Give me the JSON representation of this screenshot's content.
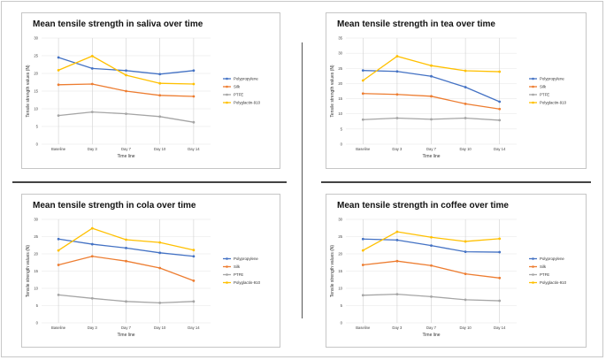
{
  "chart_data": [
    {
      "type": "line",
      "title": "Mean tensile strength in saliva over time",
      "xlabel": "Time line",
      "ylabel": "Tensile strength values (N)",
      "categories": [
        "Baseline",
        "Day 3",
        "Day 7",
        "Day 10",
        "Day 14"
      ],
      "ylim": [
        0,
        30
      ],
      "yticks": [
        0,
        5,
        10,
        15,
        20,
        25,
        30
      ],
      "legend_position": "right",
      "series": [
        {
          "name": "Polypropylene",
          "color": "#4472C4",
          "values": [
            24.5,
            21.4,
            20.8,
            19.8,
            20.8
          ]
        },
        {
          "name": "Silk",
          "color": "#ED7D31",
          "values": [
            16.8,
            17.0,
            15.0,
            13.8,
            13.5
          ]
        },
        {
          "name": "PTFE",
          "color": "#A5A5A5",
          "values": [
            8.1,
            9.1,
            8.6,
            7.8,
            6.2
          ]
        },
        {
          "name": "Polyglactin-910",
          "color": "#FFC000",
          "values": [
            20.9,
            24.9,
            19.5,
            17.2,
            17.0
          ]
        }
      ]
    },
    {
      "type": "line",
      "title": "Mean tensile strength in tea over time",
      "xlabel": "Time line",
      "ylabel": "Tensile strength values (N)",
      "categories": [
        "Baseline",
        "Day 3",
        "Day 7",
        "Day 10",
        "Day 14"
      ],
      "ylim": [
        0,
        35
      ],
      "yticks": [
        0,
        5,
        10,
        15,
        20,
        25,
        30,
        35
      ],
      "legend_position": "right",
      "series": [
        {
          "name": "Polypropylene",
          "color": "#4472C4",
          "values": [
            24.3,
            24.0,
            22.4,
            18.8,
            14.0
          ]
        },
        {
          "name": "Silk",
          "color": "#ED7D31",
          "values": [
            16.7,
            16.4,
            15.8,
            13.3,
            11.6
          ]
        },
        {
          "name": "PTFE",
          "color": "#A5A5A5",
          "values": [
            8.1,
            8.6,
            8.2,
            8.6,
            7.9
          ]
        },
        {
          "name": "Polyglactin-910",
          "color": "#FFC000",
          "values": [
            21.0,
            29.0,
            25.9,
            24.2,
            23.9
          ]
        }
      ]
    },
    {
      "type": "line",
      "title": "Mean tensile strength in cola over time",
      "xlabel": "Time line",
      "ylabel": "Tensile strength values (N)",
      "categories": [
        "Baseline",
        "Day 3",
        "Day 7",
        "Day 10",
        "Day 14"
      ],
      "ylim": [
        0,
        30
      ],
      "yticks": [
        0,
        5,
        10,
        15,
        20,
        25,
        30
      ],
      "legend_position": "right",
      "series": [
        {
          "name": "Polypropylene",
          "color": "#4472C4",
          "values": [
            24.3,
            22.8,
            21.7,
            20.3,
            19.3
          ]
        },
        {
          "name": "Silk",
          "color": "#ED7D31",
          "values": [
            16.8,
            19.3,
            17.9,
            15.9,
            12.2
          ]
        },
        {
          "name": "PTFE",
          "color": "#A5A5A5",
          "values": [
            8.1,
            7.1,
            6.2,
            5.8,
            6.2
          ]
        },
        {
          "name": "Polyglactin-910",
          "color": "#FFC000",
          "values": [
            21.0,
            27.4,
            24.1,
            23.3,
            21.1
          ]
        }
      ]
    },
    {
      "type": "line",
      "title": "Mean tensile strength in coffee over time",
      "xlabel": "Time line",
      "ylabel": "Tensile strength values (N)",
      "categories": [
        "Baseline",
        "Day 3",
        "Day 7",
        "Day 10",
        "Day 14"
      ],
      "ylim": [
        0,
        30
      ],
      "yticks": [
        0,
        5,
        10,
        15,
        20,
        25,
        30
      ],
      "legend_position": "right",
      "series": [
        {
          "name": "Polypropylene",
          "color": "#4472C4",
          "values": [
            24.3,
            24.0,
            22.4,
            20.6,
            20.5
          ]
        },
        {
          "name": "Silk",
          "color": "#ED7D31",
          "values": [
            16.8,
            17.9,
            16.6,
            14.2,
            13.0
          ]
        },
        {
          "name": "PTFE",
          "color": "#A5A5A5",
          "values": [
            8.0,
            8.3,
            7.6,
            6.7,
            6.4
          ]
        },
        {
          "name": "Polyglactin-910",
          "color": "#FFC000",
          "values": [
            21.0,
            26.4,
            24.8,
            23.6,
            24.4
          ]
        }
      ]
    }
  ]
}
